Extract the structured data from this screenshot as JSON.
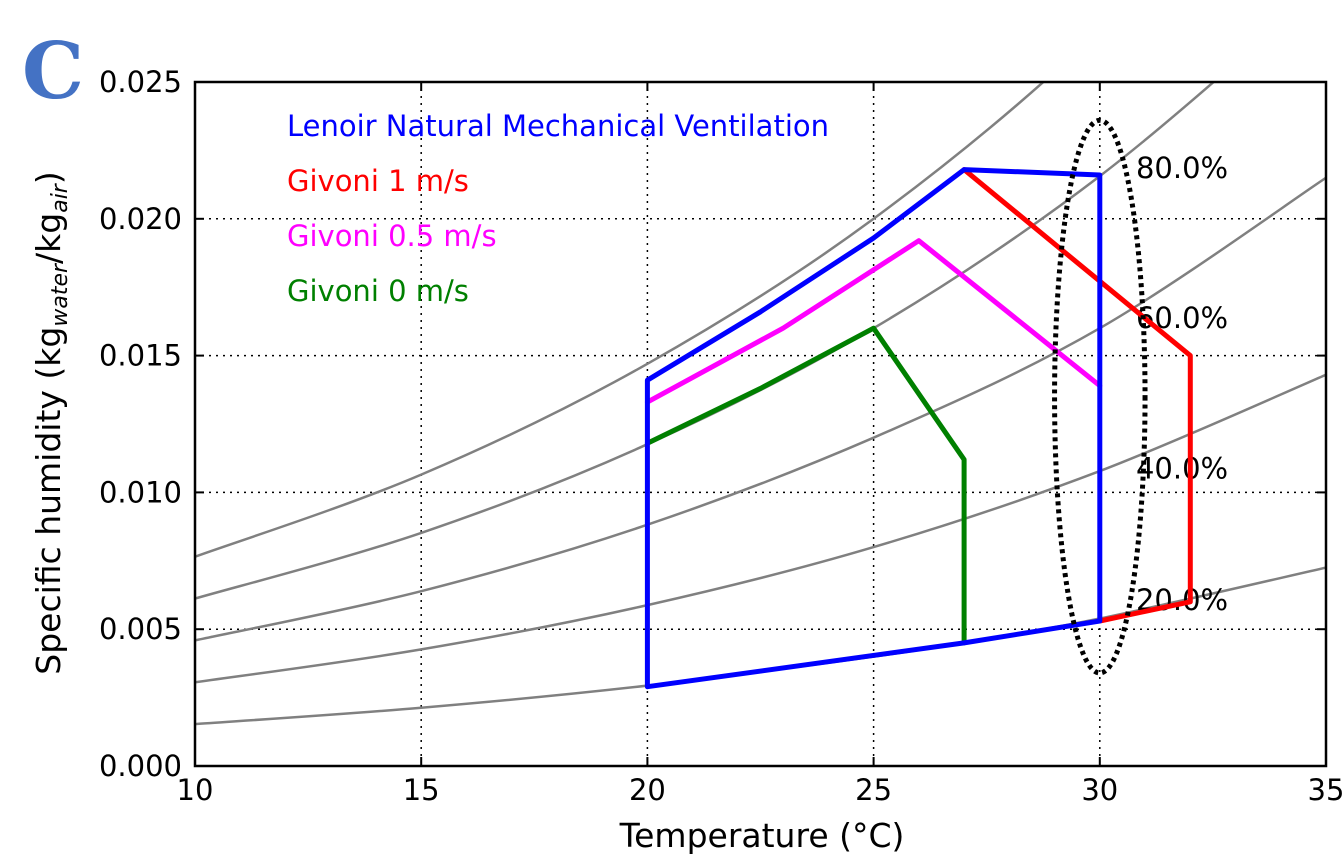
{
  "panel_label": "C",
  "colors": {
    "panel_label": "#4472c4",
    "rh_curves": "#808080",
    "grid": "#000000"
  },
  "chart_data": {
    "type": "line",
    "xlabel": "Temperature (°C)",
    "ylabel": {
      "prefix": "Specific humidity (kg",
      "sub1": "water",
      "mid": "/kg",
      "sub2": "air",
      "suffix": ")"
    },
    "xlim": [
      10,
      35
    ],
    "ylim": [
      0.0,
      0.025
    ],
    "xticks": [
      10,
      15,
      20,
      25,
      30,
      35
    ],
    "xtick_labels": [
      "10",
      "15",
      "20",
      "25",
      "30",
      "35"
    ],
    "yticks": [
      0.0,
      0.005,
      0.01,
      0.015,
      0.02,
      0.025
    ],
    "ytick_labels": [
      "0.000",
      "0.005",
      "0.010",
      "0.015",
      "0.020",
      "0.025"
    ],
    "grid": "dotted",
    "legend_placement": "top-left",
    "rh_curves": [
      {
        "label": "",
        "values": [
          [
            10,
            0.00153
          ],
          [
            15,
            0.00213
          ],
          [
            20,
            0.00294
          ],
          [
            25,
            0.004
          ],
          [
            27,
            0.00452
          ],
          [
            30,
            0.00539
          ],
          [
            35,
            0.00725
          ]
        ]
      },
      {
        "label": "20.0%",
        "label_at": [
          30.8,
          0.0057
        ],
        "values": [
          [
            10,
            0.00306
          ],
          [
            15,
            0.00426
          ],
          [
            20,
            0.00588
          ],
          [
            25,
            0.008
          ],
          [
            30,
            0.01078
          ],
          [
            35,
            0.0143
          ]
        ]
      },
      {
        "label": "40.0%",
        "label_at": [
          30.8,
          0.0105
        ],
        "values": [
          [
            10,
            0.00459
          ],
          [
            15,
            0.00639
          ],
          [
            20,
            0.00882
          ],
          [
            25,
            0.012
          ],
          [
            30,
            0.016
          ],
          [
            35,
            0.0215
          ]
        ]
      },
      {
        "label": "60.0%",
        "label_at": [
          30.8,
          0.016
        ],
        "values": [
          [
            10,
            0.00612
          ],
          [
            15,
            0.00852
          ],
          [
            20,
            0.01176
          ],
          [
            25,
            0.016
          ],
          [
            30,
            0.02156
          ],
          [
            35,
            0.0286
          ]
        ]
      },
      {
        "label": "80.0%",
        "label_at": [
          30.8,
          0.0215
        ],
        "values": [
          [
            10,
            0.00765
          ],
          [
            15,
            0.01065
          ],
          [
            20,
            0.0147
          ],
          [
            25,
            0.02
          ],
          [
            30,
            0.0269
          ],
          [
            35,
            0.0358
          ]
        ]
      }
    ],
    "series": [
      {
        "name": "Lenoir Natural Mechanical Ventilation",
        "color": "#0000ff",
        "values": [
          [
            20,
            0.0029
          ],
          [
            27,
            0.0045
          ],
          [
            30,
            0.0053
          ],
          [
            30,
            0.0216
          ],
          [
            27,
            0.0218
          ],
          [
            25,
            0.0193
          ],
          [
            22.5,
            0.0166
          ],
          [
            20,
            0.0141
          ],
          [
            20,
            0.0029
          ]
        ]
      },
      {
        "name": "Givoni 1 m/s",
        "color": "#ff0000",
        "values": [
          [
            27,
            0.0218
          ],
          [
            32,
            0.015
          ],
          [
            32,
            0.006
          ],
          [
            30,
            0.0053
          ]
        ]
      },
      {
        "name": "Givoni 0.5 m/s",
        "color": "#ff00ff",
        "values": [
          [
            20,
            0.0133
          ],
          [
            23,
            0.016
          ],
          [
            26,
            0.0192
          ],
          [
            30,
            0.0139
          ]
        ]
      },
      {
        "name": "Givoni 0 m/s",
        "color": "#008000",
        "values": [
          [
            20,
            0.0118
          ],
          [
            22.5,
            0.0138
          ],
          [
            25,
            0.016
          ],
          [
            27,
            0.0112
          ],
          [
            27,
            0.0045
          ]
        ]
      }
    ],
    "annotation_ellipse": {
      "center": [
        30,
        0.0135
      ],
      "x_half_width": 1.0,
      "y_half_height": 0.0101
    }
  }
}
